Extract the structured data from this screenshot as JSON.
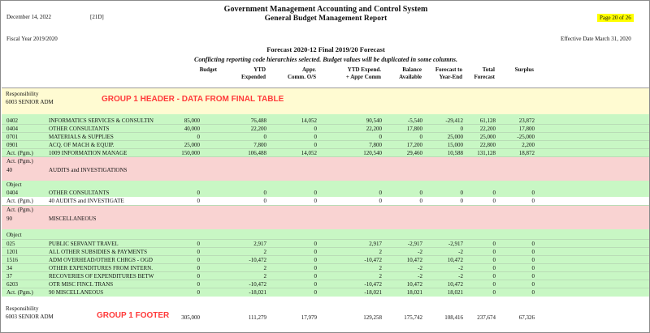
{
  "header": {
    "date": "December 14, 2022",
    "code": "[21D]",
    "title": "Government Management Accounting and Control System",
    "subtitle": "General Budget Management Report",
    "page": "Page 20 of 26",
    "fiscal_year": "Fiscal Year 2019/2020",
    "effective_date": "Effective Date March 31, 2020",
    "forecast_title": "Forecast 2020-12 Final 2019/20 Forecast",
    "warning": "Conflicting reporting code hierarchies selected. Budget values will be duplicated in some columns."
  },
  "columns": {
    "budget": "Budget",
    "ytd1": "YTD",
    "ytd2": "Expended",
    "appr1": "Appr.",
    "appr2": "Comm. O/S",
    "ytdexp1": "YTD Expend.",
    "ytdexp2": "+ Appr Comm",
    "bal1": "Balance",
    "bal2": "Available",
    "fc1": "Forecast to",
    "fc2": "Year-End",
    "tot1": "Total",
    "tot2": "Forecast",
    "surplus": "Surplus"
  },
  "group_header": {
    "label": "Responsibility",
    "value": "6003  SENIOR ADM",
    "annotation": "GROUP 1 HEADER  - DATA FROM FINAL TABLE"
  },
  "group_footer": {
    "label": "Responsibility",
    "value": "6003  SENIOR ADM",
    "annotation": "GROUP 1 FOOTER"
  },
  "rows": [
    {
      "code": "0402",
      "desc": "INFORMATICS SERVICES & CONSULTIN",
      "v": [
        "85,000",
        "76,488",
        "14,052",
        "90,540",
        "-5,540",
        "-29,412",
        "61,128",
        "23,872"
      ]
    },
    {
      "code": "0404",
      "desc": "OTHER CONSULTANTS",
      "v": [
        "40,000",
        "22,200",
        "0",
        "22,200",
        "17,800",
        "0",
        "22,200",
        "17,800"
      ]
    },
    {
      "code": "0701",
      "desc": "MATERIALS & SUPPLIES",
      "v": [
        "0",
        "0",
        "0",
        "0",
        "0",
        "25,000",
        "25,000",
        "-25,000"
      ]
    },
    {
      "code": "0901",
      "desc": "ACQ. OF MACH & EQUIP.",
      "v": [
        "25,000",
        "7,800",
        "0",
        "7,800",
        "17,200",
        "15,000",
        "22,800",
        "2,200"
      ]
    },
    {
      "code": "Act. (Pgm.)",
      "desc": "1009       INFORMATION MANAGE",
      "v": [
        "150,000",
        "106,488",
        "14,052",
        "120,540",
        "29,460",
        "10,588",
        "131,128",
        "18,872"
      ]
    },
    {
      "code": "Act. (Pgm.)",
      "desc": "",
      "v": []
    },
    {
      "code": "40",
      "desc": "AUDITS and INVESTIGATIONS",
      "v": []
    },
    {
      "code": "Object",
      "desc": "",
      "v": []
    },
    {
      "code": "0404",
      "desc": "OTHER CONSULTANTS",
      "v": [
        "0",
        "0",
        "0",
        "0",
        "0",
        "0",
        "0",
        "0"
      ]
    },
    {
      "code": "Act. (Pgm.)",
      "desc": "40         AUDITS and INVESTIGATE",
      "v": [
        "0",
        "0",
        "0",
        "0",
        "0",
        "0",
        "0",
        "0"
      ]
    },
    {
      "code": "Act. (Pgm.)",
      "desc": "",
      "v": []
    },
    {
      "code": "90",
      "desc": "MISCELLANEOUS",
      "v": []
    },
    {
      "code": "Object",
      "desc": "",
      "v": []
    },
    {
      "code": "025",
      "desc": "PUBLIC SERVANT TRAVEL",
      "v": [
        "0",
        "2,917",
        "0",
        "2,917",
        "-2,917",
        "-2,917",
        "0",
        "0"
      ]
    },
    {
      "code": "1201",
      "desc": "ALL OTHER SUBSIDIES & PAYMENTS",
      "v": [
        "0",
        "2",
        "0",
        "2",
        "-2",
        "-2",
        "0",
        "0"
      ]
    },
    {
      "code": "1516",
      "desc": "ADM OVERHEAD/OTHER CHRGS - OGD",
      "v": [
        "0",
        "-10,472",
        "0",
        "-10,472",
        "10,472",
        "10,472",
        "0",
        "0"
      ]
    },
    {
      "code": "34",
      "desc": "OTHER EXPENDITURES FROM INTERN.",
      "v": [
        "0",
        "2",
        "0",
        "2",
        "-2",
        "-2",
        "0",
        "0"
      ]
    },
    {
      "code": "37",
      "desc": "RECOVERIES OF EXPENDITURES BETW",
      "v": [
        "0",
        "2",
        "0",
        "2",
        "-2",
        "-2",
        "0",
        "0"
      ]
    },
    {
      "code": "6203",
      "desc": "OTR MISC FINCL TRANS",
      "v": [
        "0",
        "-10,472",
        "0",
        "-10,472",
        "10,472",
        "10,472",
        "0",
        "0"
      ]
    },
    {
      "code": "Act. (Pgm.)",
      "desc": "90         MISCELLANEOUS",
      "v": [
        "0",
        "-18,021",
        "0",
        "-18,021",
        "18,021",
        "18,021",
        "0",
        "0"
      ]
    }
  ],
  "footer_values": [
    "305,000",
    "111,279",
    "17,979",
    "129,258",
    "175,742",
    "108,416",
    "237,674",
    "67,326"
  ]
}
